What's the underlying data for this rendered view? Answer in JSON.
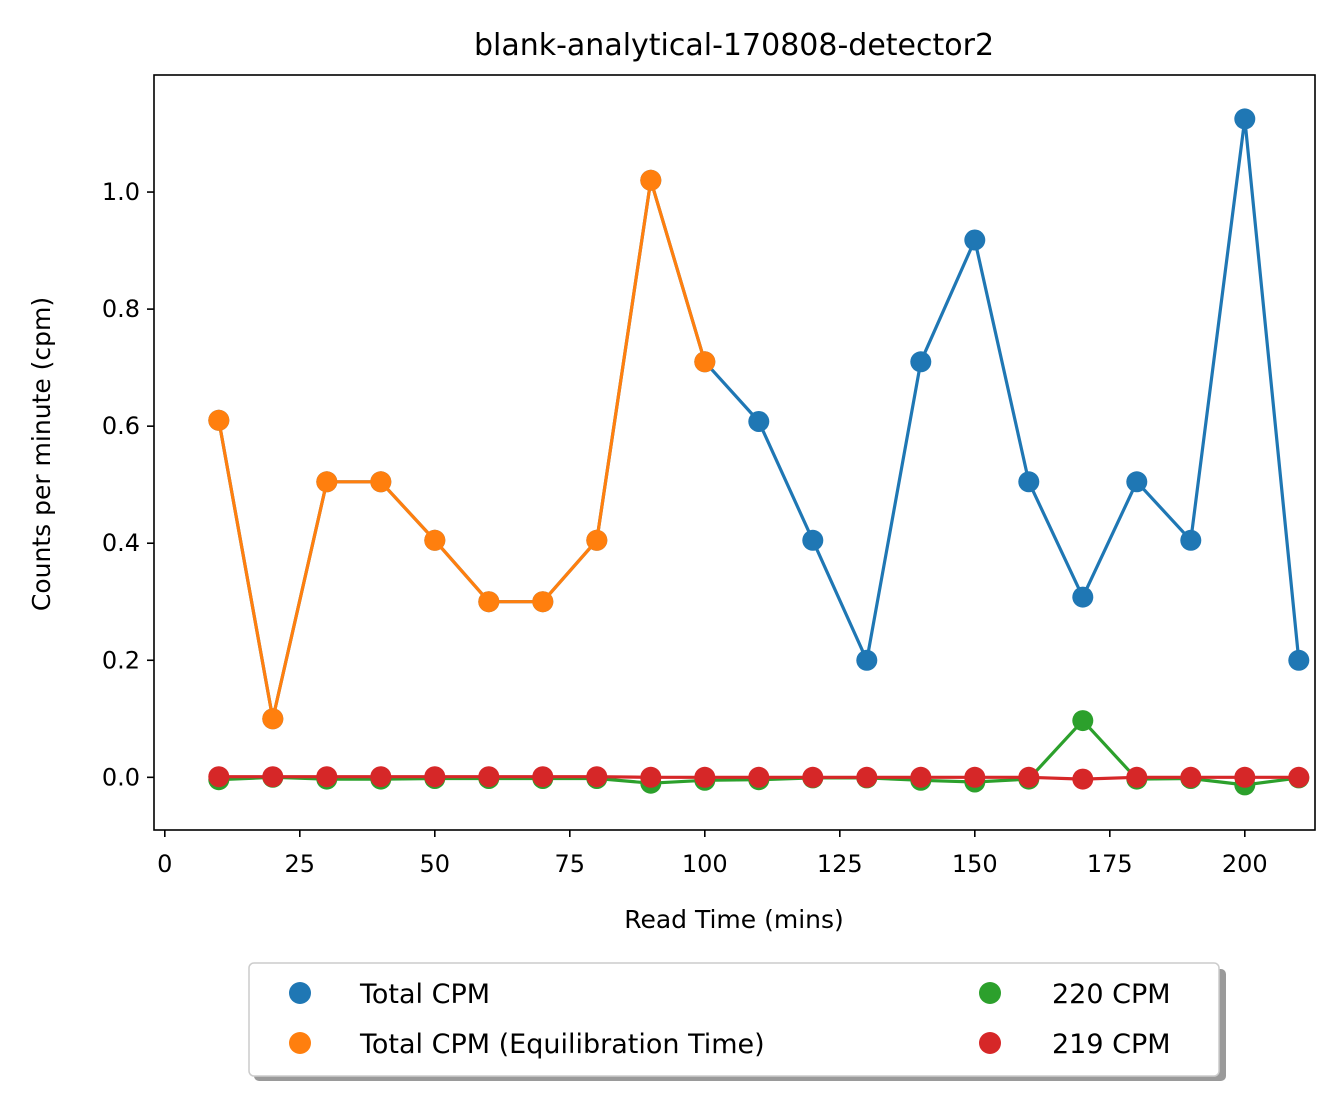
{
  "chart_data": {
    "type": "line",
    "title": "blank-analytical-170808-detector2",
    "xlabel": "Read Time (mins)",
    "ylabel": "Counts per minute (cpm)",
    "xlim": [
      -2,
      213
    ],
    "ylim": [
      -0.09,
      1.2
    ],
    "xticks": [
      0,
      25,
      50,
      75,
      100,
      125,
      150,
      175,
      200
    ],
    "xtick_labels": [
      "0",
      "25",
      "50",
      "75",
      "100",
      "125",
      "150",
      "175",
      "200"
    ],
    "yticks": [
      0.0,
      0.2,
      0.4,
      0.6,
      0.8,
      1.0
    ],
    "ytick_labels": [
      "0.0",
      "0.2",
      "0.4",
      "0.6",
      "0.8",
      "1.0"
    ],
    "grid": false,
    "legend_position": "below plot, two columns",
    "series": [
      {
        "name": "Total CPM",
        "color": "#1f77b4",
        "x": [
          10,
          20,
          30,
          40,
          50,
          60,
          70,
          80,
          90,
          100,
          110,
          120,
          130,
          140,
          150,
          160,
          170,
          180,
          190,
          200,
          210
        ],
        "y": [
          0.61,
          0.1,
          0.505,
          0.505,
          0.405,
          0.3,
          0.3,
          0.405,
          1.02,
          0.71,
          0.608,
          0.405,
          0.2,
          0.71,
          0.918,
          0.505,
          0.308,
          0.505,
          0.405,
          1.125,
          0.2
        ]
      },
      {
        "name": "Total CPM (Equilibration Time)",
        "color": "#ff7f0e",
        "x": [
          10,
          20,
          30,
          40,
          50,
          60,
          70,
          80,
          90,
          100
        ],
        "y": [
          0.61,
          0.1,
          0.505,
          0.505,
          0.405,
          0.3,
          0.3,
          0.405,
          1.02,
          0.71
        ]
      },
      {
        "name": "220 CPM",
        "color": "#2ca02c",
        "x": [
          10,
          20,
          30,
          40,
          50,
          60,
          70,
          80,
          90,
          100,
          110,
          120,
          130,
          140,
          150,
          160,
          170,
          180,
          190,
          200,
          210
        ],
        "y": [
          -0.004,
          0.0,
          -0.003,
          -0.003,
          -0.002,
          -0.002,
          -0.002,
          -0.002,
          -0.01,
          -0.005,
          -0.004,
          -0.001,
          -0.001,
          -0.005,
          -0.008,
          -0.003,
          0.097,
          -0.003,
          -0.002,
          -0.013,
          -0.001
        ]
      },
      {
        "name": "219 CPM",
        "color": "#d62728",
        "x": [
          10,
          20,
          30,
          40,
          50,
          60,
          70,
          80,
          90,
          100,
          110,
          120,
          130,
          140,
          150,
          160,
          170,
          180,
          190,
          200,
          210
        ],
        "y": [
          0.001,
          0.001,
          0.001,
          0.001,
          0.001,
          0.001,
          0.001,
          0.001,
          0.0,
          0.0,
          0.0,
          0.0,
          0.0,
          0.0,
          0.0,
          0.0,
          -0.003,
          0.0,
          0.0,
          0.0,
          0.0
        ]
      }
    ]
  }
}
